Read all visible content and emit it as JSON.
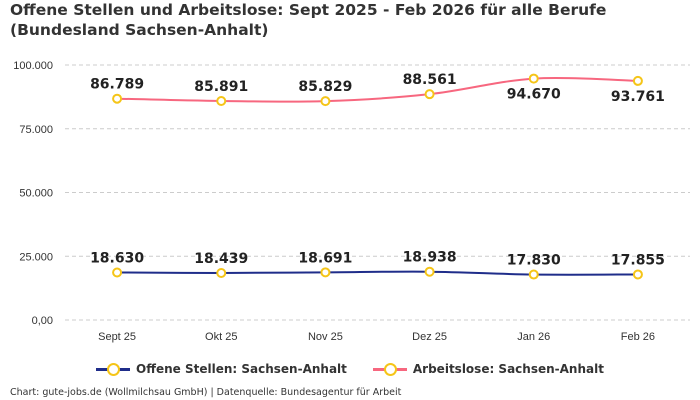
{
  "chart_data": {
    "type": "line",
    "title": "Offene Stellen und Arbeitslose: Sept 2025 - Feb 2026 für alle Berufe (Bundesland Sachsen-Anhalt)",
    "categories": [
      "Sept 25",
      "Okt 25",
      "Nov 25",
      "Dez 25",
      "Jan 26",
      "Feb 26"
    ],
    "ylim": [
      0,
      100000
    ],
    "yticks": [
      0,
      25000,
      50000,
      75000,
      100000
    ],
    "ytick_labels": [
      "0,00",
      "25.000",
      "50.000",
      "75.000",
      "100.000"
    ],
    "grid": true,
    "legend_placement": "bottom",
    "series": [
      {
        "name": "Offene Stellen: Sachsen-Anhalt",
        "color": "#1f2d8a",
        "marker_color": "#f5c518",
        "values": [
          18630,
          18439,
          18691,
          18938,
          17830,
          17855
        ],
        "labels": [
          "18.630",
          "18.439",
          "18.691",
          "18.938",
          "17.830",
          "17.855"
        ]
      },
      {
        "name": "Arbeitslose: Sachsen-Anhalt",
        "color": "#f7677f",
        "marker_color": "#f5c518",
        "values": [
          86789,
          85891,
          85829,
          88561,
          94670,
          93761
        ],
        "labels": [
          "86.789",
          "85.891",
          "85.829",
          "88.561",
          "94.670",
          "93.761"
        ]
      }
    ]
  },
  "credits": "Chart: gute-jobs.de (Wollmilchsau GmbH) | Datenquelle: Bundesagentur für Arbeit"
}
